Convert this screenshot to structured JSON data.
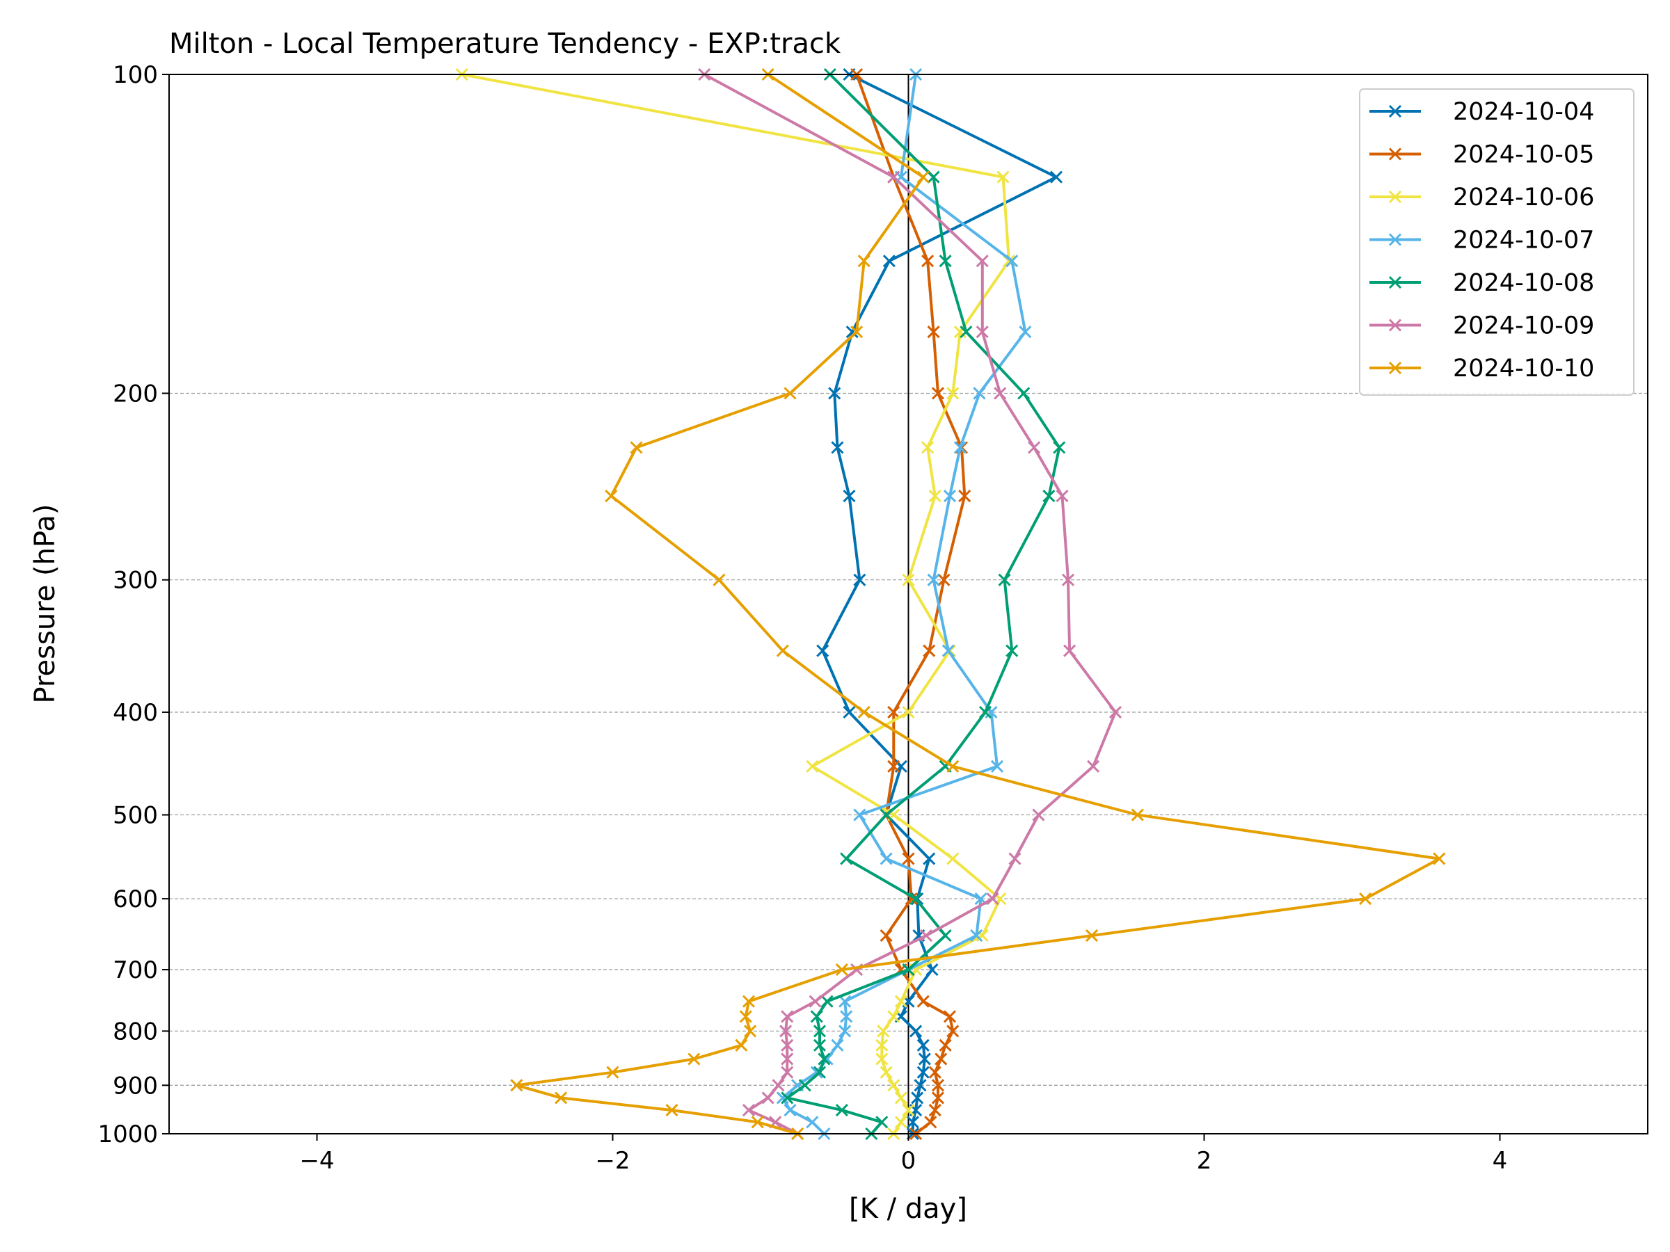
{
  "chart_data": {
    "type": "line",
    "title": "Milton - Local Temperature Tendency - EXP:track",
    "xlabel": "[K / day]",
    "ylabel": "Pressure (hPa)",
    "xlim": [
      -5,
      5
    ],
    "ylim": [
      1000,
      100
    ],
    "y_scale": "log",
    "x_ticks": [
      -4,
      -2,
      0,
      2,
      4
    ],
    "x_tick_labels": [
      "−4",
      "−2",
      "0",
      "2",
      "4"
    ],
    "y_ticks": [
      100,
      200,
      300,
      400,
      500,
      600,
      700,
      800,
      900,
      1000
    ],
    "y_tick_labels": [
      "100",
      "200",
      "300",
      "400",
      "500",
      "600",
      "700",
      "800",
      "900",
      "1000"
    ],
    "grid": "horizontal dashed gray at y ticks",
    "zero_line": true,
    "legend_position": "top-right",
    "marker": "x",
    "levels": [
      1000,
      975,
      950,
      925,
      900,
      875,
      850,
      825,
      800,
      775,
      750,
      700,
      650,
      600,
      550,
      500,
      450,
      400,
      350,
      300,
      250,
      225,
      200,
      175,
      150,
      125,
      100
    ],
    "series": [
      {
        "name": "2024-10-04",
        "color": "#0072B2",
        "values": [
          0.03,
          0.03,
          0.05,
          0.06,
          0.08,
          0.1,
          0.11,
          0.1,
          0.05,
          -0.05,
          0.0,
          0.16,
          0.07,
          0.06,
          0.14,
          -0.15,
          -0.05,
          -0.4,
          -0.58,
          -0.33,
          -0.4,
          -0.48,
          -0.5,
          -0.38,
          -0.13,
          1.0,
          -0.4
        ]
      },
      {
        "name": "2024-10-05",
        "color": "#D55E00",
        "values": [
          0.05,
          0.15,
          0.18,
          0.2,
          0.2,
          0.18,
          0.22,
          0.25,
          0.3,
          0.28,
          0.1,
          -0.05,
          -0.15,
          0.02,
          0.0,
          -0.15,
          -0.1,
          -0.1,
          0.14,
          0.24,
          0.38,
          0.36,
          0.2,
          0.17,
          0.13,
          -0.1,
          -0.35
        ]
      },
      {
        "name": "2024-10-06",
        "color": "#F0E442",
        "values": [
          -0.1,
          -0.05,
          0.0,
          -0.05,
          -0.1,
          -0.15,
          -0.18,
          -0.18,
          -0.17,
          -0.1,
          -0.05,
          0.05,
          0.5,
          0.62,
          0.3,
          -0.1,
          -0.65,
          0.0,
          0.28,
          0.0,
          0.18,
          0.13,
          0.3,
          0.35,
          0.68,
          0.64,
          -3.02
        ]
      },
      {
        "name": "2024-10-07",
        "color": "#56B4E9",
        "values": [
          -0.57,
          -0.65,
          -0.8,
          -0.85,
          -0.75,
          -0.62,
          -0.55,
          -0.48,
          -0.43,
          -0.42,
          -0.43,
          0.0,
          0.46,
          0.49,
          -0.15,
          -0.33,
          0.6,
          0.56,
          0.27,
          0.17,
          0.28,
          0.35,
          0.48,
          0.79,
          0.7,
          -0.05,
          0.05
        ]
      },
      {
        "name": "2024-10-08",
        "color": "#009E73",
        "values": [
          -0.25,
          -0.18,
          -0.45,
          -0.82,
          -0.7,
          -0.6,
          -0.57,
          -0.6,
          -0.6,
          -0.62,
          -0.55,
          0.0,
          0.25,
          0.05,
          -0.42,
          -0.15,
          0.25,
          0.52,
          0.7,
          0.65,
          0.95,
          1.02,
          0.78,
          0.39,
          0.25,
          0.17,
          -0.53
        ]
      },
      {
        "name": "2024-10-09",
        "color": "#CC79A7",
        "values": [
          -0.75,
          -0.9,
          -1.08,
          -0.95,
          -0.88,
          -0.82,
          -0.82,
          -0.82,
          -0.83,
          -0.82,
          -0.63,
          -0.35,
          0.12,
          0.57,
          0.72,
          0.88,
          1.25,
          1.4,
          1.09,
          1.08,
          1.04,
          0.85,
          0.62,
          0.5,
          0.5,
          -0.1,
          -1.38
        ]
      },
      {
        "name": "2024-10-10",
        "color": "#E69F00",
        "values": [
          -0.75,
          -1.02,
          -1.6,
          -2.35,
          -2.65,
          -2.0,
          -1.45,
          -1.13,
          -1.07,
          -1.1,
          -1.08,
          -0.45,
          1.24,
          3.09,
          3.59,
          1.55,
          0.3,
          -0.3,
          -0.85,
          -1.28,
          -2.01,
          -1.84,
          -0.8,
          -0.35,
          -0.3,
          0.1,
          -0.95
        ]
      }
    ]
  }
}
